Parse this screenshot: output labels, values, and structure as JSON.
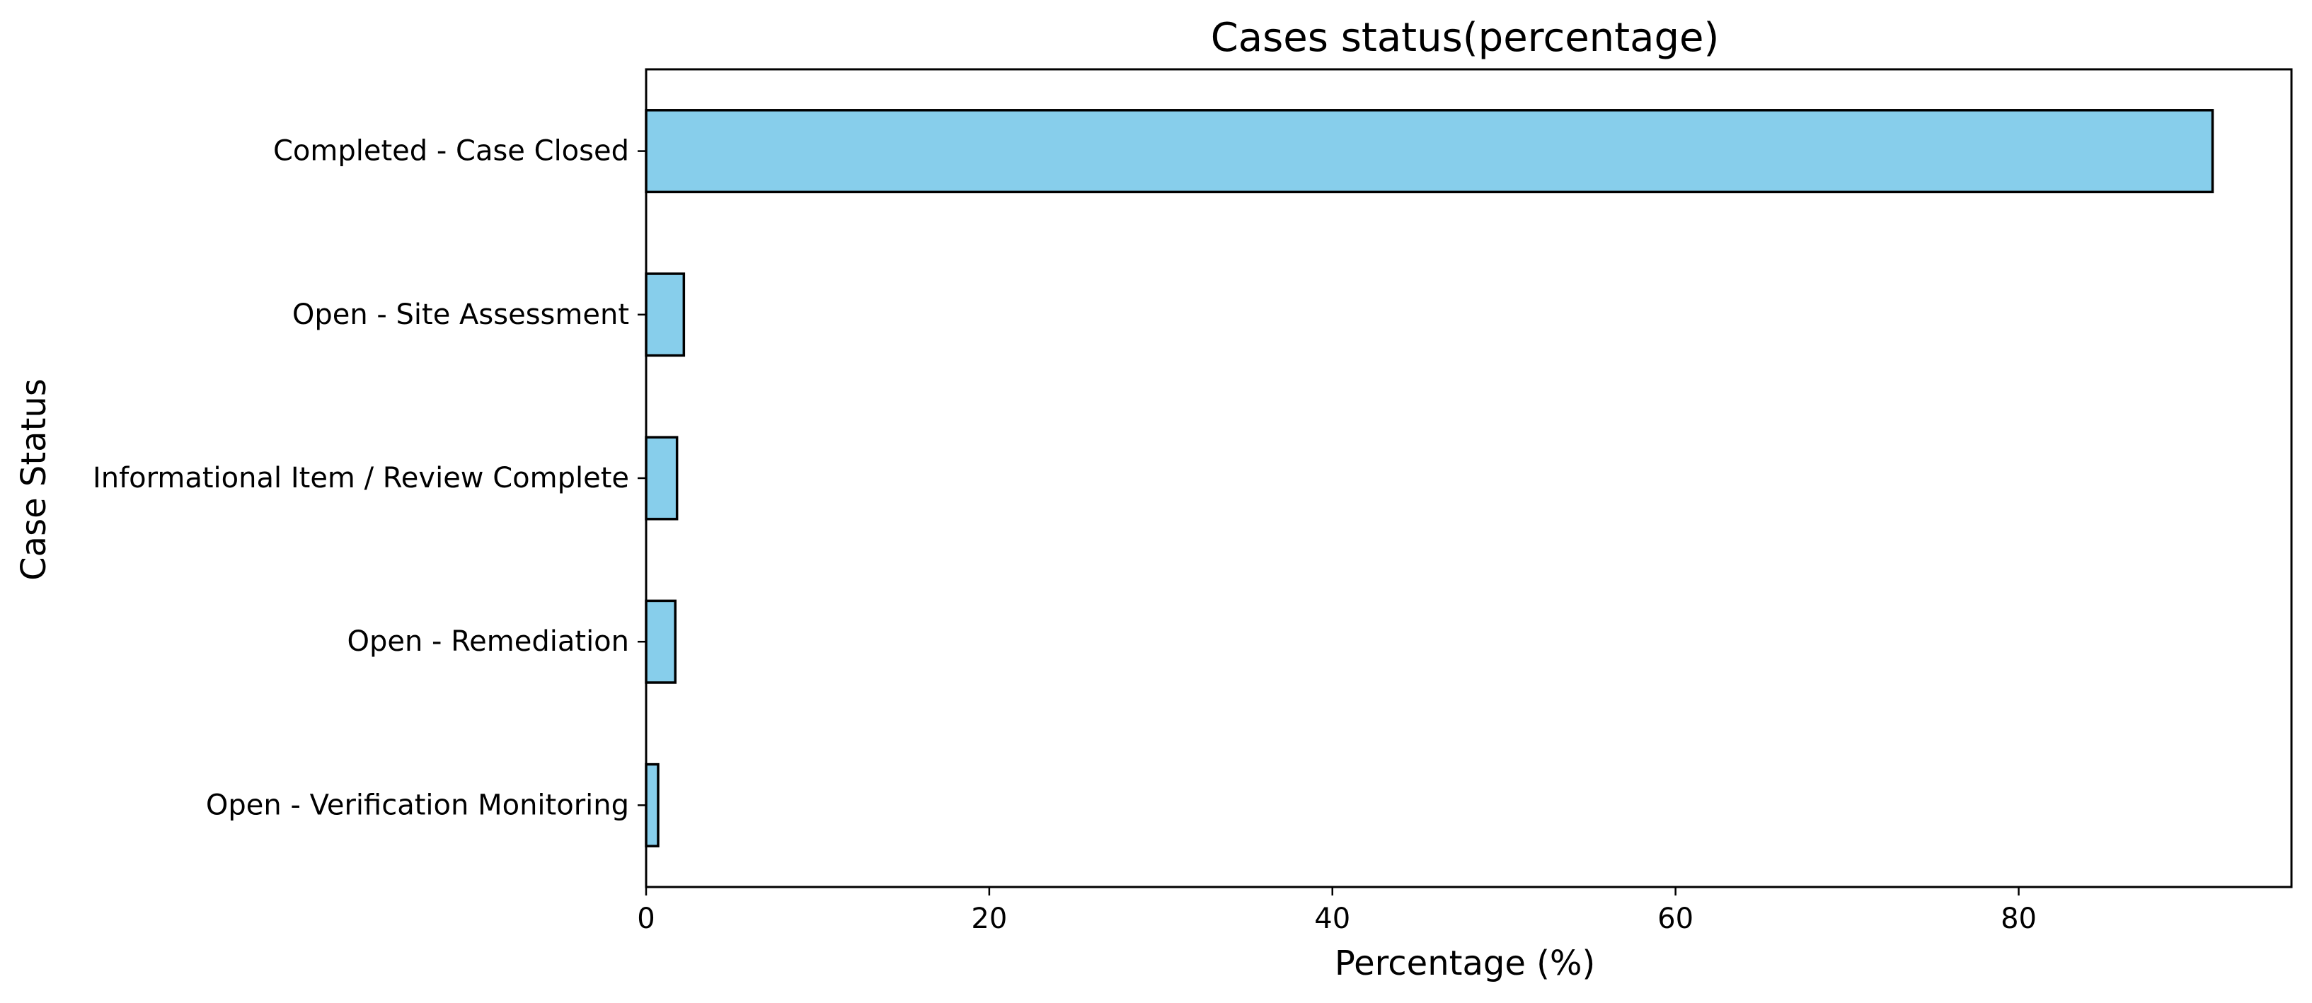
{
  "chart_data": {
    "type": "bar",
    "orientation": "horizontal",
    "title": "Cases status(percentage)",
    "xlabel": "Percentage (%)",
    "ylabel": "Case Status",
    "categories": [
      "Completed - Case Closed",
      "Open - Site Assessment",
      "Informational Item / Review Complete",
      "Open - Remediation",
      "Open - Verification Monitoring"
    ],
    "values": [
      91.3,
      2.2,
      1.8,
      1.7,
      0.7
    ],
    "xlim": [
      0,
      95.9
    ],
    "xticks": [
      0,
      20,
      40,
      60,
      80
    ],
    "grid": false,
    "colors": {
      "bar_fill": "#87CEEB",
      "bar_edge": "#000000",
      "axes": "#000000",
      "background": "#ffffff"
    }
  }
}
